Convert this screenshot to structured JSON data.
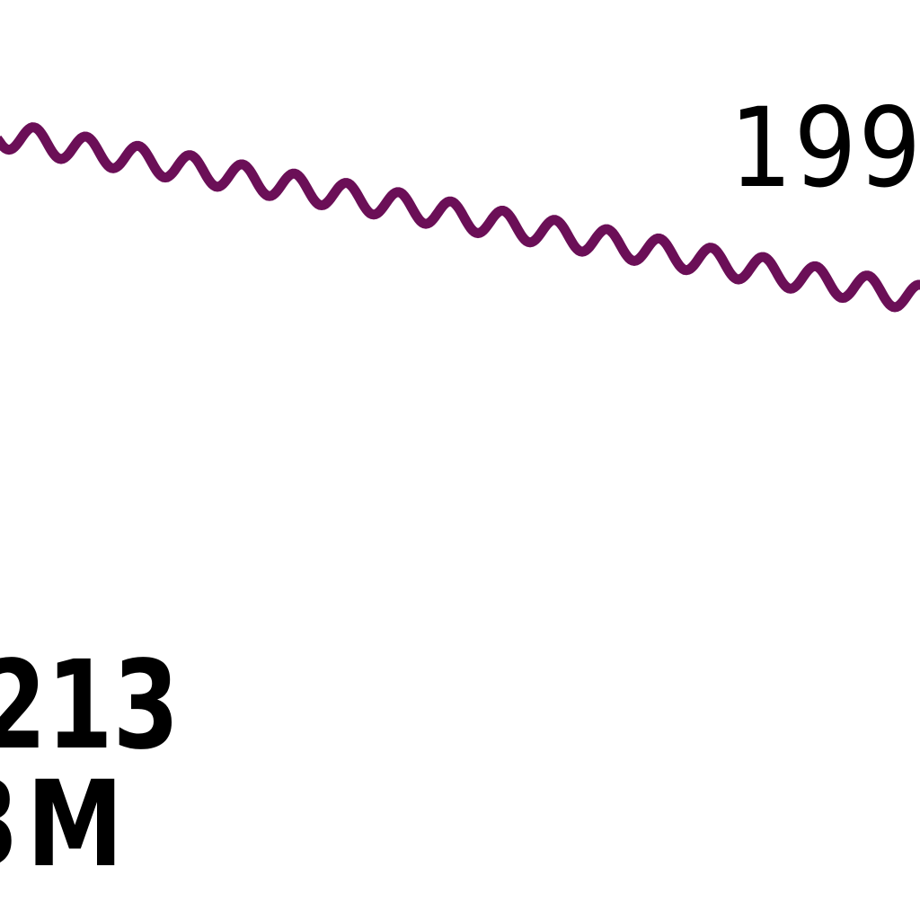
{
  "line_color": "#6b0f57",
  "labels": {
    "top_right": "199",
    "bottom_left_line1": "213",
    "bottom_left_line2": "3M"
  }
}
